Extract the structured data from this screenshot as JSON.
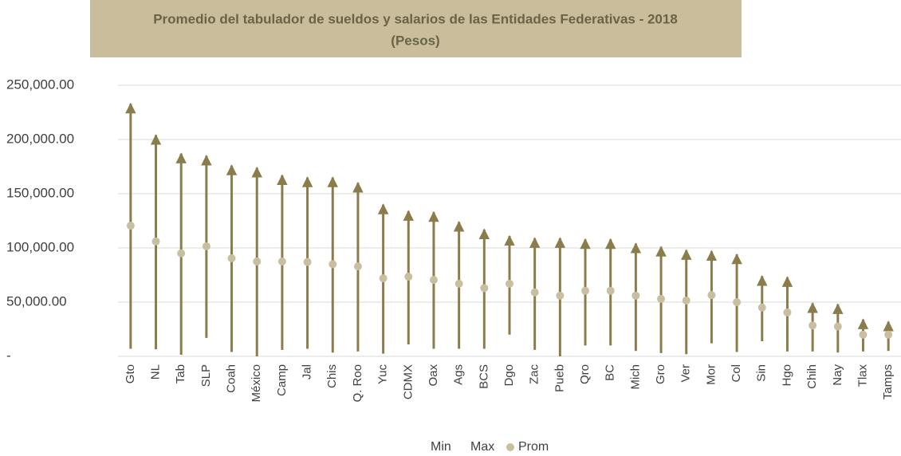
{
  "chart_data": {
    "type": "range",
    "title": "Promedio del tabulador de sueldos y salarios de las Entidades Federativas - 2018",
    "subtitle": "(Pesos)",
    "categories": [
      "Gto",
      "NL",
      "Tab",
      "SLP",
      "Coah",
      "México",
      "Camp",
      "Jal",
      "Chis",
      "Q. Roo",
      "Yuc",
      "CDMX",
      "Oax",
      "Ags",
      "BCS",
      "Dgo",
      "Zac",
      "Pueb",
      "Qro",
      "BC",
      "Mich",
      "Gro",
      "Ver",
      "Mor",
      "Col",
      "Sin",
      "Hgo",
      "Chih",
      "Nay",
      "Tlax",
      "Tamps"
    ],
    "series": [
      {
        "name": "Min",
        "color": "#8b7d4b",
        "values": [
          7000,
          6500,
          1500,
          17000,
          4000,
          0,
          6000,
          7000,
          3500,
          4500,
          2500,
          11000,
          7000,
          7000,
          7000,
          20000,
          6000,
          0,
          10000,
          10000,
          5000,
          3000,
          2000,
          12000,
          4000,
          14000,
          4500,
          4500,
          3500,
          4500,
          5000
        ]
      },
      {
        "name": "Max",
        "color": "#8b7d4b",
        "values": [
          233000,
          204000,
          187000,
          185000,
          176000,
          174000,
          167000,
          165000,
          165000,
          160000,
          140000,
          134000,
          133000,
          124000,
          117000,
          111000,
          109000,
          109000,
          108000,
          108000,
          104000,
          101000,
          98000,
          97000,
          94000,
          74000,
          73000,
          49000,
          48000,
          34000,
          32000
        ]
      },
      {
        "name": "Prom",
        "color": "#c9bfa0",
        "values": [
          120500,
          106000,
          95000,
          101500,
          90500,
          87500,
          87500,
          87000,
          85000,
          83000,
          72000,
          73500,
          70500,
          67000,
          63000,
          67000,
          59000,
          56000,
          60500,
          60500,
          56000,
          53000,
          51500,
          56500,
          50000,
          45000,
          40500,
          28500,
          27500,
          20000,
          20000
        ]
      }
    ],
    "ylim": [
      0,
      250000
    ],
    "yticks": [
      {
        "value": 0,
        "label": "-"
      },
      {
        "value": 50000,
        "label": "50,000.00"
      },
      {
        "value": 100000,
        "label": "100,000.00"
      },
      {
        "value": 150000,
        "label": "150,000.00"
      },
      {
        "value": 200000,
        "label": "200,000.00"
      },
      {
        "value": 250000,
        "label": "250,000.00"
      }
    ],
    "grid": true,
    "legend": "bottom"
  }
}
